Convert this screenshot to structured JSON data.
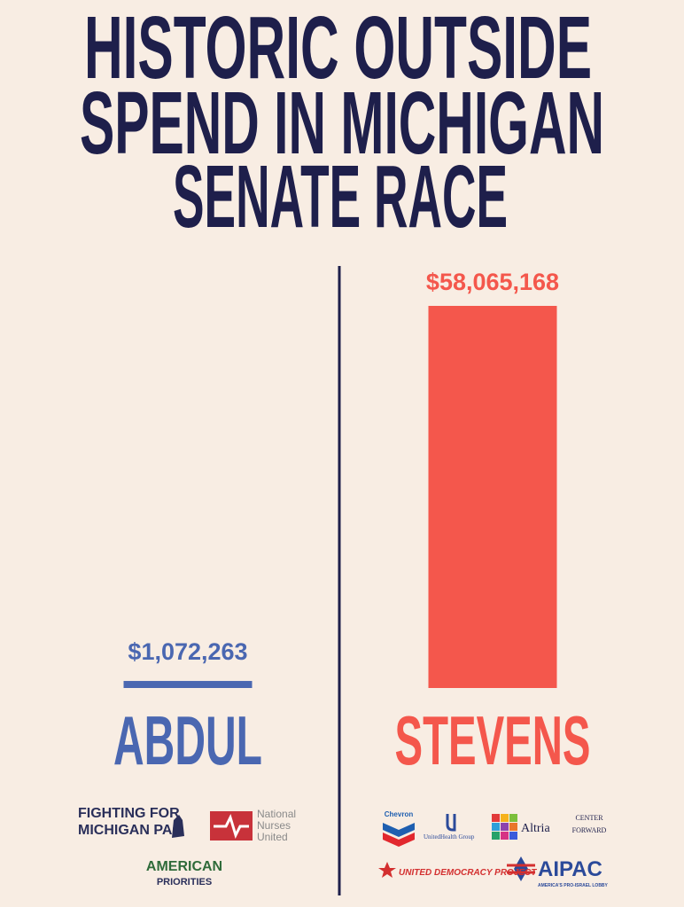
{
  "chart_data": {
    "type": "bar",
    "title": [
      "HISTORIC OUTSIDE",
      "SPEND IN MICHIGAN",
      "SENATE RACE"
    ],
    "categories": [
      "ABDUL",
      "STEVENS"
    ],
    "values": [
      1072263,
      58065168
    ],
    "value_labels": [
      "$1,072,263",
      "$58,065,168"
    ],
    "colors": [
      "#4a67b1",
      "#f4574c"
    ],
    "logos": [
      [
        [
          "FIGHTING FOR",
          "MICHIGAN PAC"
        ],
        [
          "National",
          "Nurses",
          "United"
        ],
        [
          "AMERICAN",
          "PRIORITIES"
        ]
      ],
      [
        [
          "Chevron"
        ],
        [
          "UnitedHealth Group"
        ],
        [
          "Altria"
        ],
        [
          "CENTER",
          "FORWARD"
        ],
        [
          "UNITED DEMOCRACY PROJECT"
        ],
        [
          "AIPAC",
          "AMERICA'S PRO-ISRAEL LOBBY"
        ]
      ]
    ]
  }
}
